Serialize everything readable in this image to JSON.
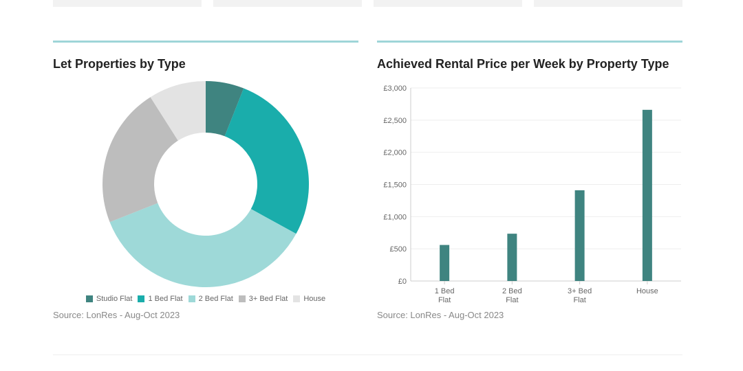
{
  "colors": {
    "studio_flat": "#3f8480",
    "one_bed_flat": "#1aadab",
    "two_bed_flat": "#9ed9d8",
    "three_bed_flat": "#bdbdbd",
    "house": "#e3e3e3",
    "bar": "#3f8480",
    "accent_rule": "#9ed5d8"
  },
  "left_panel": {
    "title": "Let Properties by Type",
    "source": "Source: LonRes - Aug-Oct 2023"
  },
  "right_panel": {
    "title": "Achieved Rental Price per Week by Property Type",
    "source": "Source: LonRes - Aug-Oct 2023"
  },
  "chart_data": [
    {
      "type": "pie",
      "title": "Let Properties by Type",
      "donut": true,
      "legend_position": "bottom",
      "categories": [
        "Studio Flat",
        "1 Bed Flat",
        "2 Bed Flat",
        "3+ Bed Flat",
        "House"
      ],
      "values": [
        6,
        27,
        36,
        22,
        9
      ],
      "unit": "%"
    },
    {
      "type": "bar",
      "title": "Achieved Rental Price per Week by Property Type",
      "categories": [
        [
          "1 Bed",
          "Flat"
        ],
        [
          "2 Bed",
          "Flat"
        ],
        [
          "3+ Bed",
          "Flat"
        ],
        [
          "House"
        ]
      ],
      "values": [
        560,
        735,
        1410,
        2660
      ],
      "ylim": [
        0,
        3000
      ],
      "yticks": [
        "£0",
        "£500",
        "£1,000",
        "£1,500",
        "£2,000",
        "£2,500",
        "£3,000"
      ],
      "grid": true
    }
  ]
}
